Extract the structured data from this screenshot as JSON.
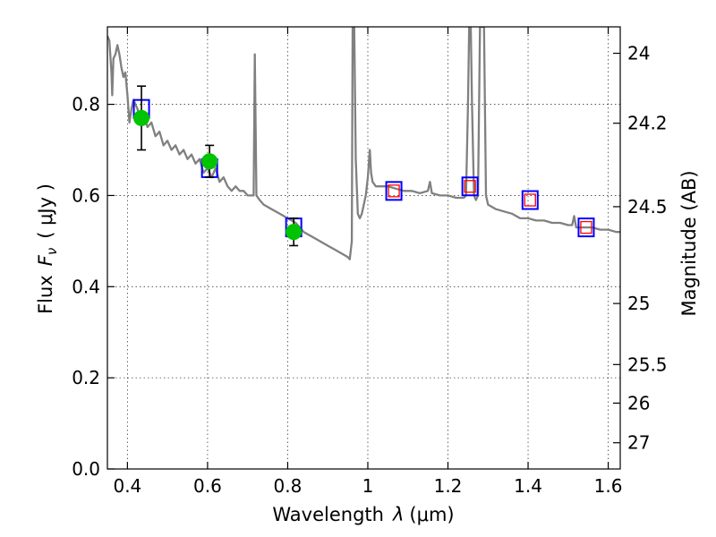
{
  "chart_data": {
    "type": "line",
    "xlabel_text": "Wavelength",
    "xlabel_symbol": "λ",
    "xlabel_unit": "(μm)",
    "ylabel_text": "Flux",
    "ylabel_symbol": "F",
    "ylabel_subscript": "ν",
    "ylabel_unit": "( μJy )",
    "y2label": "Magnitude (AB)",
    "xlim": [
      0.35,
      1.63
    ],
    "ylim": [
      0.0,
      0.97
    ],
    "grid": true,
    "x_ticks": [
      {
        "value": 0.4,
        "label": "0.4"
      },
      {
        "value": 0.6,
        "label": "0.6"
      },
      {
        "value": 0.8,
        "label": "0.8"
      },
      {
        "value": 1.0,
        "label": "1"
      },
      {
        "value": 1.2,
        "label": "1.2"
      },
      {
        "value": 1.4,
        "label": "1.4"
      },
      {
        "value": 1.6,
        "label": "1.6"
      }
    ],
    "y_ticks": [
      {
        "value": 0.0,
        "label": "0.0"
      },
      {
        "value": 0.2,
        "label": "0.2"
      },
      {
        "value": 0.4,
        "label": "0.4"
      },
      {
        "value": 0.6,
        "label": "0.6"
      },
      {
        "value": 0.8,
        "label": "0.8"
      }
    ],
    "y2_ticks": [
      {
        "value": 24.0,
        "label": "24"
      },
      {
        "value": 24.2,
        "label": "24.2"
      },
      {
        "value": 24.5,
        "label": "24.5"
      },
      {
        "value": 25.0,
        "label": "25"
      },
      {
        "value": 25.5,
        "label": "25.5"
      },
      {
        "value": 26.0,
        "label": "26"
      },
      {
        "value": 27.0,
        "label": "27"
      }
    ],
    "spectrum": [
      [
        0.35,
        0.95
      ],
      [
        0.355,
        0.94
      ],
      [
        0.36,
        0.87
      ],
      [
        0.362,
        0.82
      ],
      [
        0.365,
        0.9
      ],
      [
        0.37,
        0.91
      ],
      [
        0.375,
        0.93
      ],
      [
        0.38,
        0.91
      ],
      [
        0.385,
        0.88
      ],
      [
        0.39,
        0.86
      ],
      [
        0.395,
        0.87
      ],
      [
        0.4,
        0.82
      ],
      [
        0.405,
        0.76
      ],
      [
        0.41,
        0.79
      ],
      [
        0.415,
        0.81
      ],
      [
        0.42,
        0.8
      ],
      [
        0.425,
        0.79
      ],
      [
        0.43,
        0.77
      ],
      [
        0.44,
        0.78
      ],
      [
        0.45,
        0.75
      ],
      [
        0.46,
        0.76
      ],
      [
        0.47,
        0.73
      ],
      [
        0.48,
        0.74
      ],
      [
        0.49,
        0.71
      ],
      [
        0.5,
        0.72
      ],
      [
        0.51,
        0.7
      ],
      [
        0.52,
        0.71
      ],
      [
        0.53,
        0.69
      ],
      [
        0.54,
        0.7
      ],
      [
        0.55,
        0.68
      ],
      [
        0.56,
        0.69
      ],
      [
        0.57,
        0.67
      ],
      [
        0.58,
        0.68
      ],
      [
        0.59,
        0.65
      ],
      [
        0.6,
        0.66
      ],
      [
        0.61,
        0.64
      ],
      [
        0.62,
        0.66
      ],
      [
        0.63,
        0.63
      ],
      [
        0.64,
        0.64
      ],
      [
        0.65,
        0.62
      ],
      [
        0.66,
        0.61
      ],
      [
        0.67,
        0.62
      ],
      [
        0.68,
        0.61
      ],
      [
        0.69,
        0.61
      ],
      [
        0.7,
        0.6
      ],
      [
        0.71,
        0.6
      ],
      [
        0.715,
        0.6
      ],
      [
        0.718,
        0.91
      ],
      [
        0.722,
        0.6
      ],
      [
        0.73,
        0.59
      ],
      [
        0.74,
        0.58
      ],
      [
        0.76,
        0.57
      ],
      [
        0.78,
        0.56
      ],
      [
        0.8,
        0.55
      ],
      [
        0.82,
        0.54
      ],
      [
        0.84,
        0.52
      ],
      [
        0.86,
        0.51
      ],
      [
        0.88,
        0.5
      ],
      [
        0.9,
        0.49
      ],
      [
        0.92,
        0.48
      ],
      [
        0.94,
        0.47
      ],
      [
        0.95,
        0.465
      ],
      [
        0.955,
        0.46
      ],
      [
        0.96,
        0.5
      ],
      [
        0.962,
        0.97
      ],
      [
        0.966,
        0.97
      ],
      [
        0.97,
        0.68
      ],
      [
        0.975,
        0.56
      ],
      [
        0.98,
        0.55
      ],
      [
        0.985,
        0.56
      ],
      [
        0.99,
        0.58
      ],
      [
        0.995,
        0.6
      ],
      [
        1.0,
        0.64
      ],
      [
        1.005,
        0.7
      ],
      [
        1.008,
        0.65
      ],
      [
        1.012,
        0.63
      ],
      [
        1.02,
        0.62
      ],
      [
        1.03,
        0.62
      ],
      [
        1.05,
        0.62
      ],
      [
        1.07,
        0.615
      ],
      [
        1.09,
        0.61
      ],
      [
        1.11,
        0.61
      ],
      [
        1.13,
        0.605
      ],
      [
        1.15,
        0.61
      ],
      [
        1.155,
        0.63
      ],
      [
        1.16,
        0.605
      ],
      [
        1.18,
        0.6
      ],
      [
        1.2,
        0.6
      ],
      [
        1.22,
        0.595
      ],
      [
        1.24,
        0.595
      ],
      [
        1.245,
        0.6
      ],
      [
        1.25,
        0.8
      ],
      [
        1.253,
        0.97
      ],
      [
        1.257,
        0.97
      ],
      [
        1.26,
        0.8
      ],
      [
        1.265,
        0.6
      ],
      [
        1.27,
        0.59
      ],
      [
        1.275,
        0.6
      ],
      [
        1.28,
        0.97
      ],
      [
        1.29,
        0.97
      ],
      [
        1.295,
        0.6
      ],
      [
        1.3,
        0.58
      ],
      [
        1.31,
        0.575
      ],
      [
        1.32,
        0.57
      ],
      [
        1.34,
        0.565
      ],
      [
        1.36,
        0.56
      ],
      [
        1.38,
        0.55
      ],
      [
        1.4,
        0.55
      ],
      [
        1.42,
        0.545
      ],
      [
        1.44,
        0.545
      ],
      [
        1.46,
        0.54
      ],
      [
        1.48,
        0.54
      ],
      [
        1.5,
        0.535
      ],
      [
        1.51,
        0.535
      ],
      [
        1.515,
        0.555
      ],
      [
        1.52,
        0.53
      ],
      [
        1.54,
        0.53
      ],
      [
        1.56,
        0.53
      ],
      [
        1.58,
        0.525
      ],
      [
        1.6,
        0.525
      ],
      [
        1.62,
        0.52
      ],
      [
        1.63,
        0.52
      ]
    ],
    "series": [
      {
        "marker": "blue-open-square",
        "color": "#0000ff",
        "points": [
          {
            "x": 0.435,
            "y": 0.79
          },
          {
            "x": 0.605,
            "y": 0.66
          },
          {
            "x": 0.815,
            "y": 0.53
          },
          {
            "x": 1.065,
            "y": 0.61
          },
          {
            "x": 1.255,
            "y": 0.62
          },
          {
            "x": 1.405,
            "y": 0.59
          },
          {
            "x": 1.545,
            "y": 0.53
          }
        ]
      },
      {
        "marker": "red-open-square",
        "color": "#ff0000",
        "points": [
          {
            "x": 1.065,
            "y": 0.61
          },
          {
            "x": 1.255,
            "y": 0.62
          },
          {
            "x": 1.405,
            "y": 0.59
          },
          {
            "x": 1.545,
            "y": 0.53
          }
        ]
      },
      {
        "marker": "green-filled-circle",
        "color": "#00c400",
        "points": [
          {
            "x": 0.435,
            "y": 0.77,
            "yerr": 0.07
          },
          {
            "x": 0.605,
            "y": 0.675,
            "yerr": 0.035
          },
          {
            "x": 0.815,
            "y": 0.52,
            "yerr": 0.03
          }
        ]
      }
    ]
  }
}
